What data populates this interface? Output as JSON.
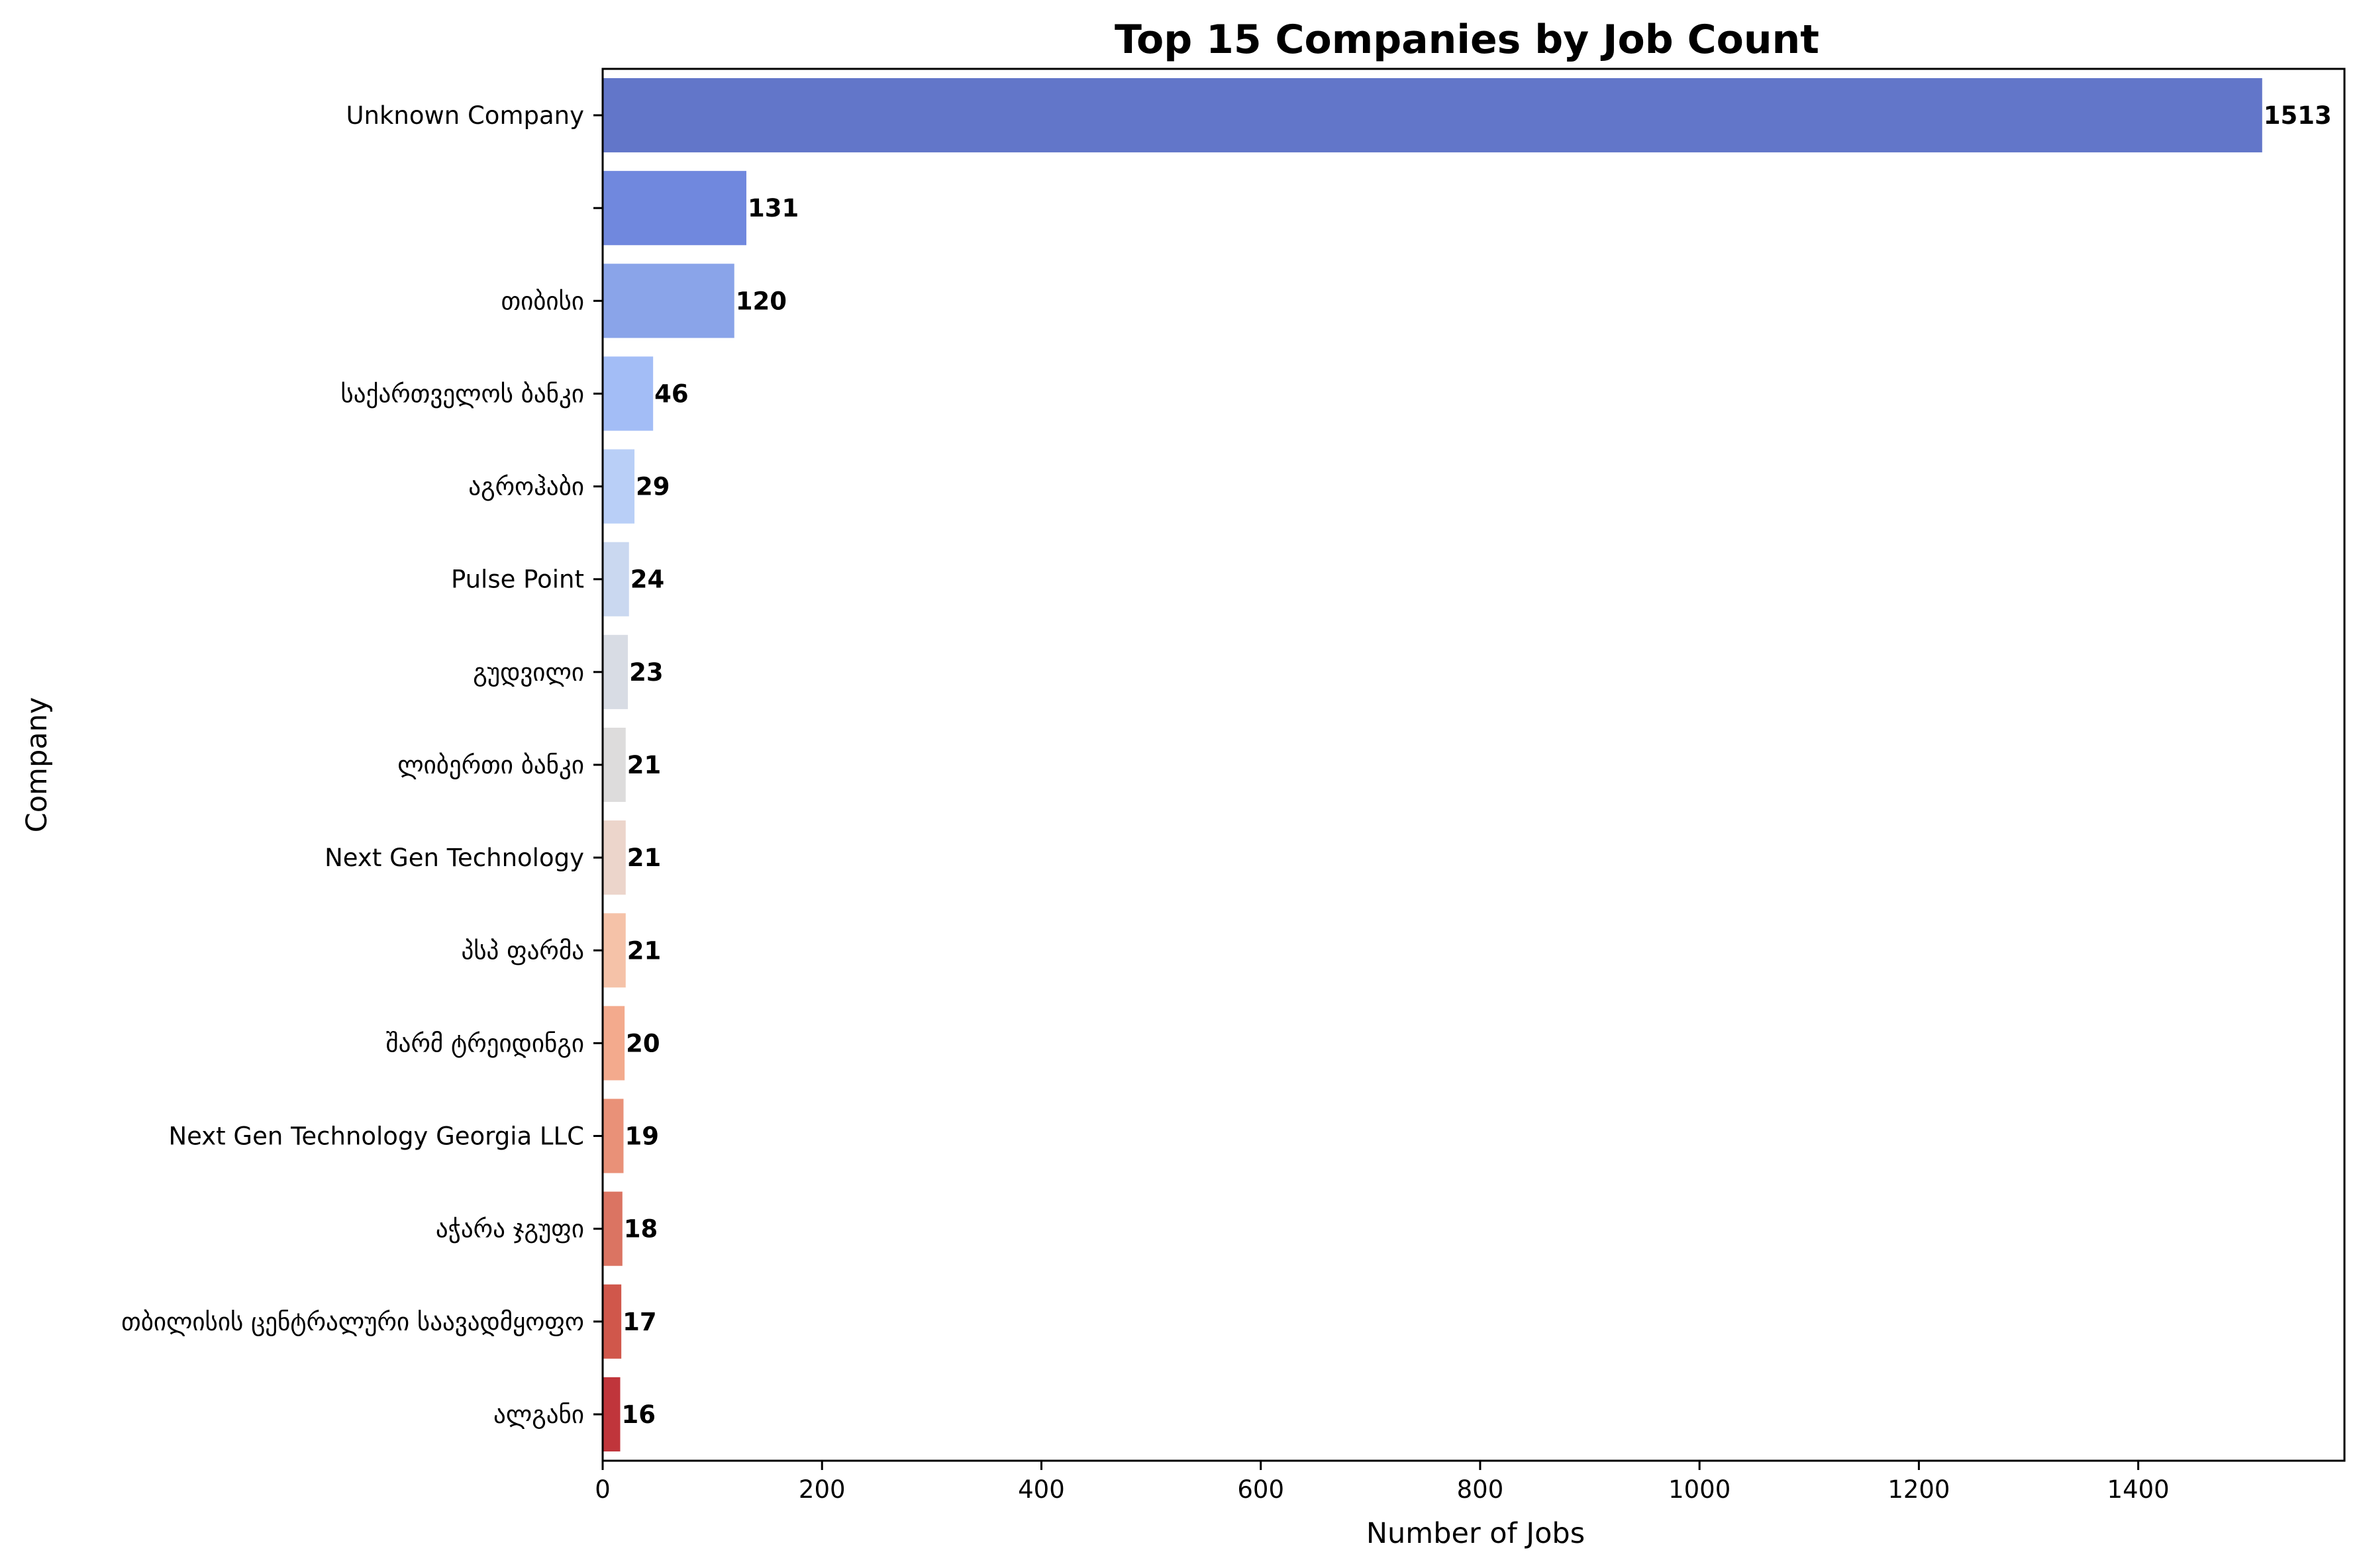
{
  "chart_data": {
    "type": "bar",
    "orientation": "horizontal",
    "title": "Top 15 Companies by Job Count",
    "xlabel": "Number of Jobs",
    "ylabel": "Company",
    "xlim": [
      0,
      1588
    ],
    "xticks": [
      0,
      200,
      400,
      600,
      800,
      1000,
      1200,
      1400
    ],
    "grid": false,
    "categories": [
      "Unknown Company",
      "",
      "თიბისი",
      "საქართველოს ბანკი",
      "აგროჰაბი",
      "Pulse Point",
      "გუდვილი",
      "ლიბერთი ბანკი",
      "Next Gen Technology",
      "პსპ ფარმა",
      "შარმ ტრეიდინგი",
      "Next Gen Technology Georgia LLC",
      "აჭარა ჯგუფი",
      "თბილისის ცენტრალური საავადმყოფო",
      "ალგანი"
    ],
    "values": [
      1513,
      131,
      120,
      46,
      29,
      24,
      23,
      21,
      21,
      21,
      20,
      19,
      18,
      17,
      16
    ],
    "value_labels": [
      "1513",
      "131",
      "120",
      "46",
      "29",
      "24",
      "23",
      "21",
      "21",
      "21",
      "20",
      "19",
      "18",
      "17",
      "16"
    ],
    "colors": [
      "#6276c9",
      "#7088de",
      "#8aa4e9",
      "#a3bdf6",
      "#b9cff7",
      "#cad8f0",
      "#d8dce4",
      "#dddcdc",
      "#ecd5cb",
      "#f5c2a8",
      "#f3aa8d",
      "#e99178",
      "#db7462",
      "#d0574b",
      "#c0353b"
    ]
  }
}
